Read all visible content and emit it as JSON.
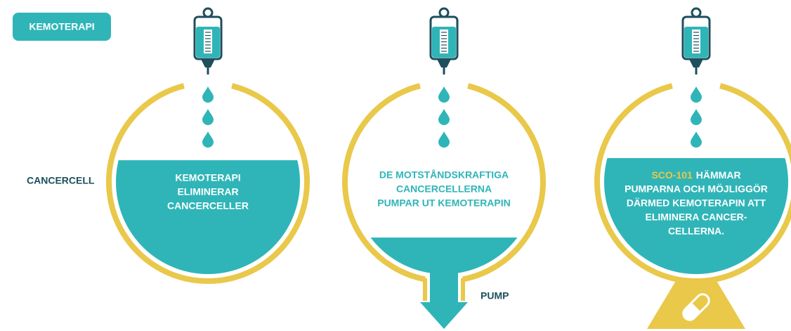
{
  "badge": "KEMOTERAPI",
  "side_label": "CANCERCELL",
  "panels": [
    {
      "lines": [
        "KEMOTERAPI",
        "ELIMINERAR",
        "CANCERCELLER"
      ]
    },
    {
      "lines": [
        "DE MOTSTÅNDSKRAFTIGA",
        "CANCERCELLERNA",
        "PUMPAR UT KEMOTERAPIN"
      ],
      "pump_label": "PUMP"
    },
    {
      "highlight": "SCO-101",
      "lines": [
        "HÄMMAR",
        "PUMPARNA OCH MÖJLIGGÖR",
        "DÄRMED KEMOTERAPIN ATT",
        "ELIMINERA CANCER-",
        "CELLERNA."
      ]
    }
  ]
}
